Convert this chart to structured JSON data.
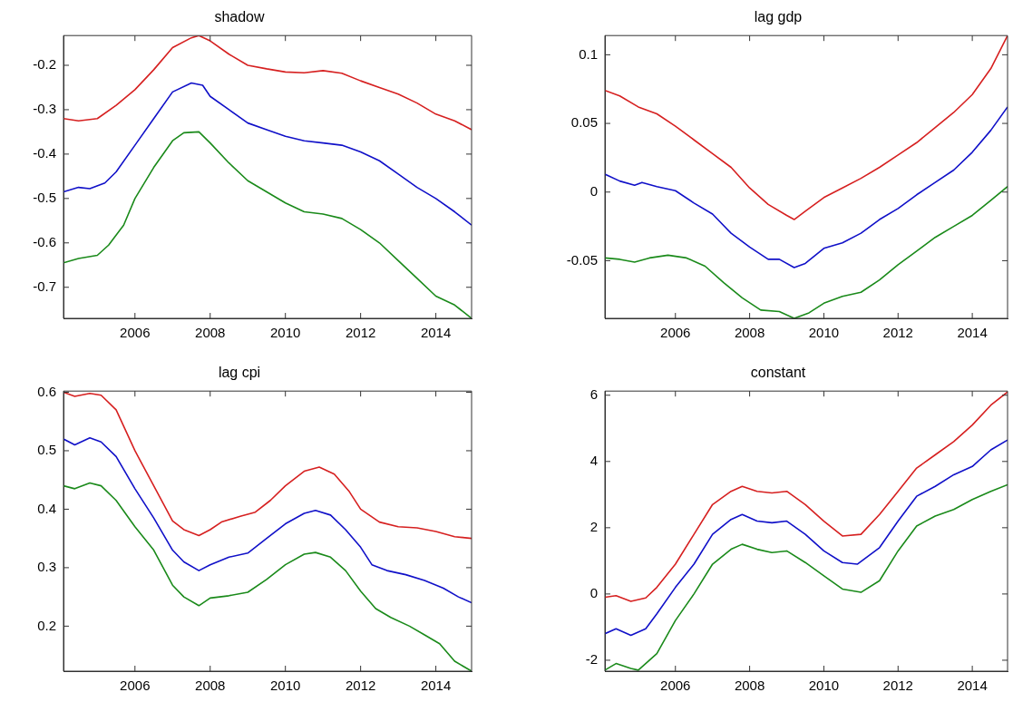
{
  "chart_data": [
    {
      "type": "line",
      "title": "shadow",
      "xlim": [
        2004.1,
        2014.95
      ],
      "xticks": [
        2006,
        2008,
        2010,
        2012,
        2014
      ],
      "ylim": [
        -0.77,
        -0.133
      ],
      "yticks": [
        -0.7,
        -0.6,
        -0.5,
        -0.4,
        -0.3,
        -0.2
      ],
      "grid": false,
      "legend": false,
      "marker": "none",
      "series": [
        {
          "color": "#d62020",
          "x": [
            2004.1,
            2004.5,
            2005,
            2005.5,
            2006,
            2006.5,
            2007,
            2007.5,
            2007.7,
            2008,
            2008.5,
            2009,
            2009.5,
            2010,
            2010.5,
            2011,
            2011.5,
            2012,
            2012.5,
            2013,
            2013.5,
            2014,
            2014.5,
            2014.95
          ],
          "values": [
            -0.32,
            -0.325,
            -0.32,
            -0.29,
            -0.255,
            -0.21,
            -0.16,
            -0.138,
            -0.133,
            -0.145,
            -0.175,
            -0.2,
            -0.208,
            -0.215,
            -0.217,
            -0.212,
            -0.218,
            -0.235,
            -0.25,
            -0.265,
            -0.285,
            -0.31,
            -0.325,
            -0.345
          ]
        },
        {
          "color": "#1010c8",
          "x": [
            2004.1,
            2004.5,
            2004.8,
            2005.2,
            2005.5,
            2006,
            2006.5,
            2007,
            2007.5,
            2007.8,
            2008,
            2008.5,
            2009,
            2009.5,
            2010,
            2010.5,
            2011,
            2011.5,
            2012,
            2012.5,
            2013,
            2013.5,
            2014,
            2014.5,
            2014.95
          ],
          "values": [
            -0.485,
            -0.475,
            -0.478,
            -0.465,
            -0.44,
            -0.38,
            -0.32,
            -0.26,
            -0.24,
            -0.245,
            -0.27,
            -0.3,
            -0.33,
            -0.345,
            -0.36,
            -0.37,
            -0.375,
            -0.38,
            -0.395,
            -0.415,
            -0.445,
            -0.475,
            -0.5,
            -0.53,
            -0.56
          ]
        },
        {
          "color": "#1a8a1a",
          "x": [
            2004.1,
            2004.5,
            2005,
            2005.3,
            2005.7,
            2006,
            2006.5,
            2007,
            2007.3,
            2007.7,
            2008,
            2008.5,
            2009,
            2009.5,
            2010,
            2010.5,
            2011,
            2011.5,
            2012,
            2012.5,
            2013,
            2013.5,
            2014,
            2014.5,
            2014.95
          ],
          "values": [
            -0.645,
            -0.635,
            -0.628,
            -0.605,
            -0.56,
            -0.5,
            -0.43,
            -0.37,
            -0.352,
            -0.35,
            -0.375,
            -0.42,
            -0.46,
            -0.485,
            -0.51,
            -0.53,
            -0.535,
            -0.545,
            -0.57,
            -0.6,
            -0.64,
            -0.68,
            -0.72,
            -0.74,
            -0.77
          ]
        }
      ]
    },
    {
      "type": "line",
      "title": "lag gdp",
      "xlim": [
        2004.1,
        2014.95
      ],
      "xticks": [
        2006,
        2008,
        2010,
        2012,
        2014
      ],
      "ylim": [
        -0.092,
        0.114
      ],
      "yticks": [
        -0.05,
        0,
        0.05,
        0.1
      ],
      "grid": false,
      "legend": false,
      "marker": "none",
      "series": [
        {
          "color": "#d62020",
          "x": [
            2004.1,
            2004.5,
            2005,
            2005.5,
            2006,
            2006.5,
            2007,
            2007.5,
            2008,
            2008.5,
            2009,
            2009.2,
            2009.5,
            2010,
            2010.5,
            2011,
            2011.5,
            2012,
            2012.5,
            2013,
            2013.5,
            2014,
            2014.5,
            2014.95
          ],
          "values": [
            0.074,
            0.07,
            0.062,
            0.057,
            0.048,
            0.038,
            0.028,
            0.018,
            0.003,
            -0.009,
            -0.017,
            -0.02,
            -0.014,
            -0.004,
            0.003,
            0.01,
            0.018,
            0.027,
            0.036,
            0.047,
            0.058,
            0.071,
            0.09,
            0.114
          ]
        },
        {
          "color": "#1010c8",
          "x": [
            2004.1,
            2004.5,
            2004.9,
            2005.1,
            2005.5,
            2006,
            2006.5,
            2007,
            2007.5,
            2008,
            2008.5,
            2008.8,
            2009.2,
            2009.5,
            2010,
            2010.5,
            2011,
            2011.5,
            2012,
            2012.5,
            2013,
            2013.5,
            2014,
            2014.5,
            2014.95
          ],
          "values": [
            0.013,
            0.008,
            0.005,
            0.007,
            0.004,
            0.001,
            -0.008,
            -0.016,
            -0.03,
            -0.04,
            -0.049,
            -0.049,
            -0.055,
            -0.052,
            -0.041,
            -0.037,
            -0.03,
            -0.02,
            -0.012,
            -0.002,
            0.007,
            0.016,
            0.029,
            0.045,
            0.062
          ]
        },
        {
          "color": "#1a8a1a",
          "x": [
            2004.1,
            2004.5,
            2004.9,
            2005.3,
            2005.8,
            2006.3,
            2006.8,
            2007.3,
            2007.8,
            2008.3,
            2008.8,
            2009.2,
            2009.6,
            2010,
            2010.5,
            2011,
            2011.5,
            2012,
            2012.5,
            2013,
            2013.5,
            2014,
            2014.5,
            2014.95
          ],
          "values": [
            -0.048,
            -0.049,
            -0.051,
            -0.048,
            -0.046,
            -0.048,
            -0.054,
            -0.066,
            -0.077,
            -0.086,
            -0.087,
            -0.092,
            -0.088,
            -0.081,
            -0.076,
            -0.073,
            -0.064,
            -0.053,
            -0.043,
            -0.033,
            -0.025,
            -0.017,
            -0.006,
            0.004
          ]
        }
      ]
    },
    {
      "type": "line",
      "title": "lag cpi",
      "xlim": [
        2004.1,
        2014.95
      ],
      "xticks": [
        2006,
        2008,
        2010,
        2012,
        2014
      ],
      "ylim": [
        0.123,
        0.602
      ],
      "yticks": [
        0.2,
        0.3,
        0.4,
        0.5,
        0.6
      ],
      "grid": false,
      "legend": false,
      "marker": "none",
      "series": [
        {
          "color": "#d62020",
          "x": [
            2004.1,
            2004.4,
            2004.8,
            2005.1,
            2005.5,
            2006,
            2006.5,
            2007,
            2007.3,
            2007.7,
            2008,
            2008.3,
            2008.8,
            2009.2,
            2009.6,
            2010,
            2010.5,
            2010.9,
            2011.3,
            2011.7,
            2012,
            2012.5,
            2013,
            2013.5,
            2014,
            2014.5,
            2014.95
          ],
          "values": [
            0.6,
            0.593,
            0.598,
            0.595,
            0.57,
            0.5,
            0.44,
            0.38,
            0.365,
            0.355,
            0.365,
            0.378,
            0.388,
            0.395,
            0.415,
            0.44,
            0.465,
            0.472,
            0.46,
            0.43,
            0.4,
            0.378,
            0.37,
            0.368,
            0.362,
            0.353,
            0.35
          ]
        },
        {
          "color": "#1010c8",
          "x": [
            2004.1,
            2004.4,
            2004.8,
            2005.1,
            2005.5,
            2006,
            2006.5,
            2007,
            2007.3,
            2007.7,
            2008,
            2008.5,
            2009,
            2009.5,
            2010,
            2010.5,
            2010.8,
            2011.2,
            2011.6,
            2012,
            2012.3,
            2012.7,
            2013.2,
            2013.7,
            2014.2,
            2014.6,
            2014.95
          ],
          "values": [
            0.52,
            0.51,
            0.522,
            0.515,
            0.49,
            0.435,
            0.385,
            0.33,
            0.31,
            0.295,
            0.305,
            0.318,
            0.325,
            0.35,
            0.375,
            0.393,
            0.398,
            0.39,
            0.365,
            0.335,
            0.305,
            0.295,
            0.288,
            0.278,
            0.265,
            0.25,
            0.24
          ]
        },
        {
          "color": "#1a8a1a",
          "x": [
            2004.1,
            2004.4,
            2004.8,
            2005.1,
            2005.5,
            2006,
            2006.5,
            2007,
            2007.3,
            2007.7,
            2008,
            2008.5,
            2009,
            2009.5,
            2010,
            2010.5,
            2010.8,
            2011.2,
            2011.6,
            2012,
            2012.4,
            2012.8,
            2013.3,
            2013.7,
            2014.1,
            2014.5,
            2014.95
          ],
          "values": [
            0.44,
            0.435,
            0.445,
            0.44,
            0.415,
            0.37,
            0.33,
            0.27,
            0.25,
            0.235,
            0.248,
            0.252,
            0.258,
            0.28,
            0.305,
            0.323,
            0.326,
            0.318,
            0.295,
            0.26,
            0.23,
            0.215,
            0.2,
            0.185,
            0.17,
            0.14,
            0.123
          ]
        }
      ]
    },
    {
      "type": "line",
      "title": "constant",
      "xlim": [
        2004.1,
        2014.95
      ],
      "xticks": [
        2006,
        2008,
        2010,
        2012,
        2014
      ],
      "ylim": [
        -2.33,
        6.125
      ],
      "yticks": [
        -2,
        0,
        2,
        4,
        6
      ],
      "grid": false,
      "legend": false,
      "marker": "none",
      "series": [
        {
          "color": "#d62020",
          "x": [
            2004.1,
            2004.4,
            2004.8,
            2005.2,
            2005.5,
            2006,
            2006.5,
            2007,
            2007.5,
            2007.8,
            2008.2,
            2008.6,
            2009,
            2009.5,
            2010,
            2010.5,
            2011,
            2011.5,
            2012,
            2012.5,
            2013,
            2013.5,
            2014,
            2014.5,
            2014.95
          ],
          "values": [
            -0.1,
            -0.05,
            -0.22,
            -0.12,
            0.2,
            0.9,
            1.8,
            2.7,
            3.1,
            3.25,
            3.1,
            3.05,
            3.1,
            2.7,
            2.2,
            1.75,
            1.8,
            2.4,
            3.1,
            3.8,
            4.2,
            4.6,
            5.1,
            5.7,
            6.1
          ]
        },
        {
          "color": "#1010c8",
          "x": [
            2004.1,
            2004.4,
            2004.8,
            2005.2,
            2005.5,
            2006,
            2006.5,
            2007,
            2007.5,
            2007.8,
            2008.2,
            2008.6,
            2009,
            2009.5,
            2010,
            2010.5,
            2010.9,
            2011.5,
            2012,
            2012.5,
            2013,
            2013.5,
            2014,
            2014.5,
            2014.95
          ],
          "values": [
            -1.2,
            -1.05,
            -1.25,
            -1.05,
            -0.6,
            0.2,
            0.9,
            1.8,
            2.25,
            2.4,
            2.2,
            2.15,
            2.2,
            1.8,
            1.3,
            0.95,
            0.9,
            1.4,
            2.2,
            2.95,
            3.25,
            3.6,
            3.85,
            4.35,
            4.65
          ]
        },
        {
          "color": "#1a8a1a",
          "x": [
            2004.1,
            2004.4,
            2004.8,
            2005,
            2005.5,
            2006,
            2006.5,
            2007,
            2007.5,
            2007.8,
            2008.2,
            2008.6,
            2009,
            2009.5,
            2010,
            2010.5,
            2011,
            2011.5,
            2012,
            2012.5,
            2013,
            2013.5,
            2014,
            2014.5,
            2014.95
          ],
          "values": [
            -2.3,
            -2.1,
            -2.25,
            -2.3,
            -1.8,
            -0.8,
            0.0,
            0.9,
            1.35,
            1.5,
            1.35,
            1.25,
            1.3,
            0.95,
            0.55,
            0.15,
            0.05,
            0.4,
            1.3,
            2.05,
            2.35,
            2.55,
            2.85,
            3.1,
            3.3
          ]
        }
      ]
    }
  ]
}
